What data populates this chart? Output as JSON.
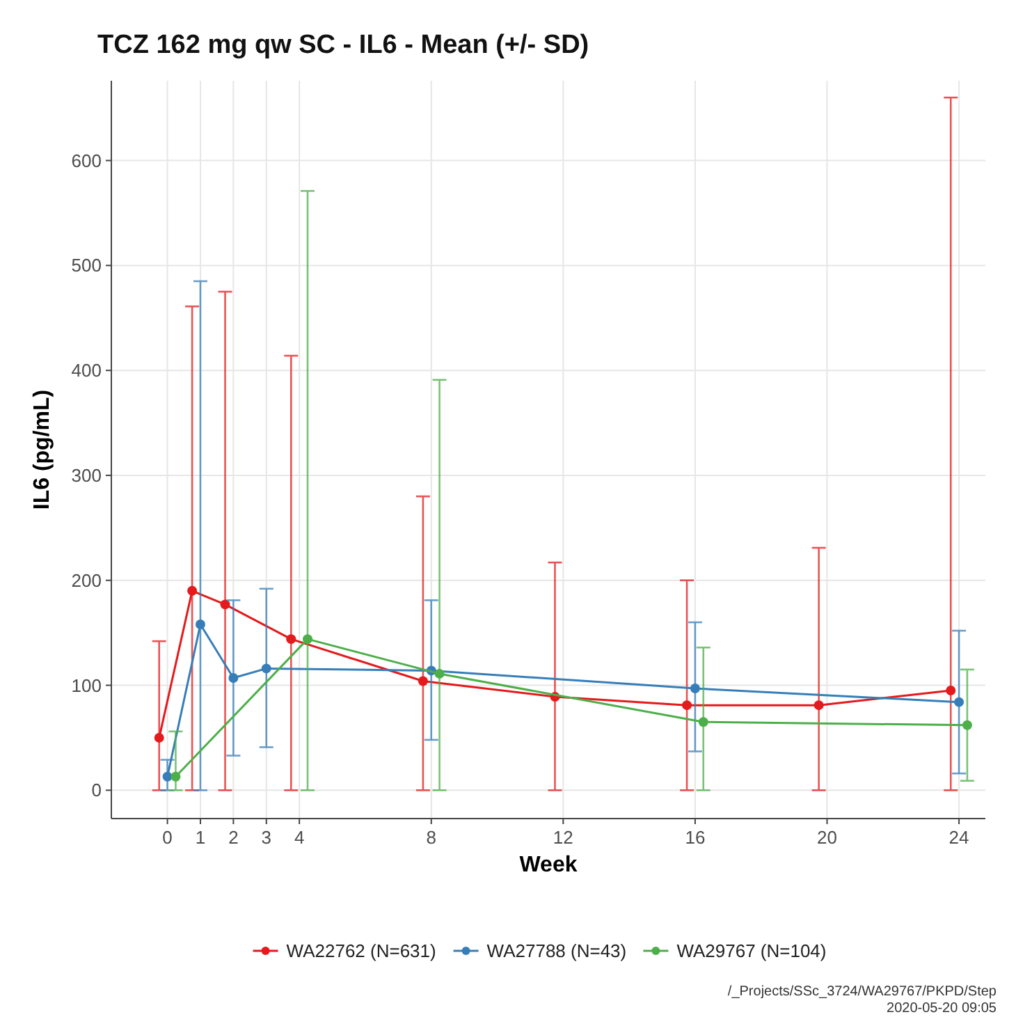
{
  "chart_data": {
    "type": "line",
    "title": "TCZ 162 mg qw SC - IL6 - Mean (+/- SD)",
    "xlabel": "Week",
    "ylabel": "IL6 (pg/mL)",
    "xlim": [
      -1.7,
      24.8
    ],
    "xticks": [
      0,
      1,
      2,
      3,
      4,
      8,
      12,
      16,
      20,
      24
    ],
    "ylim": [
      -27,
      676
    ],
    "yticks": [
      0,
      100,
      200,
      300,
      400,
      500,
      600
    ],
    "grid": true,
    "legend": "bottom",
    "marker": "circle",
    "line_style": "solid",
    "series": [
      {
        "name": "WA22762 (N=631)",
        "color": "#e41a1c",
        "x": [
          -0.25,
          0.75,
          1.75,
          3.75,
          7.75,
          11.75,
          15.75,
          19.75,
          23.75
        ],
        "values": [
          50,
          190,
          177,
          144,
          104,
          89,
          81,
          81,
          95
        ],
        "errors": [
          [
            0,
            142
          ],
          [
            0,
            461
          ],
          [
            0,
            475
          ],
          [
            0,
            414
          ],
          [
            0,
            280
          ],
          [
            0,
            217
          ],
          [
            0,
            200
          ],
          [
            0,
            231
          ],
          [
            0,
            660
          ]
        ]
      },
      {
        "name": "WA27788 (N=43)",
        "color": "#377eb8",
        "x": [
          0,
          1,
          2,
          3,
          8,
          16,
          24
        ],
        "values": [
          13,
          158,
          107,
          116,
          114,
          97,
          84
        ],
        "errors": [
          [
            0,
            29
          ],
          [
            0,
            485
          ],
          [
            33,
            181
          ],
          [
            41,
            192
          ],
          [
            48,
            181
          ],
          [
            37,
            160
          ],
          [
            16,
            152
          ]
        ]
      },
      {
        "name": "WA29767 (N=104)",
        "color": "#4daf4a",
        "x": [
          0.25,
          4.25,
          8.25,
          16.25,
          24.25
        ],
        "values": [
          13,
          144,
          111,
          65,
          62
        ],
        "errors": [
          [
            0,
            56
          ],
          [
            0,
            571
          ],
          [
            0,
            391
          ],
          [
            0,
            136
          ],
          [
            9,
            115
          ]
        ]
      }
    ],
    "annotations": [
      "/_Projects/SSc_3724/WA29767/PKPD/Step",
      "2020-05-20 09:05"
    ]
  }
}
